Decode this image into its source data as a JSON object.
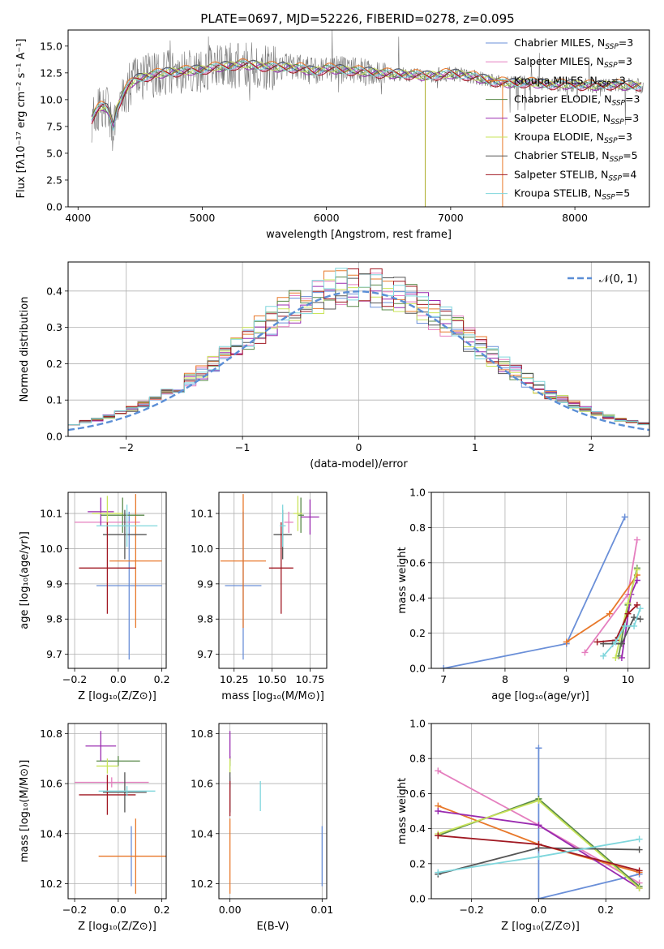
{
  "figure": {
    "title": "PLATE=0697, MJD=52226, FIBERID=0278, z=0.095"
  },
  "colors": {
    "chabrier_miles": "#6a8fd8",
    "salpeter_miles": "#e57fbf",
    "kroupa_miles": "#e8782a",
    "chabrier_elodie": "#5a8a4a",
    "salpeter_elodie": "#9a2bb0",
    "kroupa_elodie": "#c9e45a",
    "chabrier_stelib": "#555555",
    "salpeter_stelib": "#a01822",
    "kroupa_stelib": "#7fd6dc",
    "grid": "#b0b0b0",
    "gauss": "#5b8ed6"
  },
  "chart_data": [
    {
      "id": "spectrum",
      "type": "line",
      "xlabel": "wavelength [Angstrom, rest frame]",
      "ylabel": "Flux [fλ10⁻¹⁷ erg cm⁻² s⁻¹ A⁻¹]",
      "xlim": [
        3920,
        8600
      ],
      "ylim": [
        0,
        16.5
      ],
      "xticks": [
        "4000",
        "5000",
        "6000",
        "7000",
        "8000"
      ],
      "yticks": [
        "0.0",
        "2.5",
        "5.0",
        "7.5",
        "10.0",
        "12.5",
        "15.0"
      ],
      "data_x": [
        4110,
        4150,
        4200,
        4250,
        4280,
        4300,
        4350,
        4400,
        4450,
        4500,
        4600,
        4700,
        4800,
        4900,
        5000,
        5100,
        5200,
        5300,
        5400,
        5500,
        5600,
        5700,
        5800,
        5900,
        6000,
        6100,
        6200,
        6300,
        6400,
        6500,
        6600,
        6700,
        6800,
        6900,
        7000,
        7100,
        7200,
        7300,
        7400,
        7500,
        7600,
        7700,
        7800,
        7900,
        8000,
        8100,
        8200,
        8300,
        8400,
        8550
      ],
      "data_y": [
        8.2,
        9.0,
        9.5,
        9.0,
        7.0,
        8.8,
        10.2,
        11.2,
        11.8,
        12.0,
        12.3,
        12.5,
        12.6,
        12.7,
        12.8,
        13.0,
        13.1,
        13.3,
        13.2,
        13.1,
        13.0,
        13.0,
        12.9,
        12.6,
        12.9,
        12.8,
        12.7,
        12.6,
        12.5,
        12.4,
        12.4,
        12.3,
        12.2,
        12.3,
        12.4,
        12.3,
        12.1,
        11.8,
        11.6,
        11.5,
        11.6,
        11.5,
        11.4,
        11.4,
        11.4,
        11.3,
        11.3,
        11.4,
        11.3,
        11.3
      ],
      "legend": [
        "Chabrier MILES, N_SSP=3",
        "Salpeter MILES, N_SSP=3",
        "Kroupa MILES, N_SSP=3",
        "Chabrier ELODIE, N_SSP=3",
        "Salpeter ELODIE, N_SSP=3",
        "Kroupa ELODIE, N_SSP=3",
        "Chabrier STELIB, N_SSP=5",
        "Salpeter STELIB, N_SSP=4",
        "Kroupa STELIB, N_SSP=5"
      ],
      "legend_placement": "top-right",
      "grid": false
    },
    {
      "id": "residuals",
      "type": "histogram",
      "xlabel": "(data-model)/error",
      "ylabel": "Normed distribution",
      "xlim": [
        -2.5,
        2.5
      ],
      "ylim": [
        0,
        0.48
      ],
      "xticks": [
        "−2",
        "−1",
        "0",
        "1",
        "2"
      ],
      "yticks": [
        "0.0",
        "0.1",
        "0.2",
        "0.3",
        "0.4"
      ],
      "bins": [
        -2.5,
        -2.4,
        -2.3,
        -2.2,
        -2.1,
        -2.0,
        -1.9,
        -1.8,
        -1.7,
        -1.6,
        -1.5,
        -1.4,
        -1.3,
        -1.2,
        -1.1,
        -1.0,
        -0.9,
        -0.8,
        -0.7,
        -0.6,
        -0.5,
        -0.4,
        -0.3,
        -0.2,
        -0.1,
        0.0,
        0.1,
        0.2,
        0.3,
        0.4,
        0.5,
        0.6,
        0.7,
        0.8,
        0.9,
        1.0,
        1.1,
        1.2,
        1.3,
        1.4,
        1.5,
        1.6,
        1.7,
        1.8,
        1.9,
        2.0,
        2.1,
        2.2,
        2.3,
        2.4,
        2.5
      ],
      "gaussian_label": "𝒩(0, 1)",
      "legend_placement": "top-right",
      "grid": true
    },
    {
      "id": "age_vs_Z",
      "type": "scatter",
      "xlabel": "Z [log₁₀(Z/Z⊙)]",
      "ylabel": "age  [log₁₀(age/yr)]",
      "xlim": [
        -0.23,
        0.22
      ],
      "ylim": [
        9.66,
        10.16
      ],
      "xticks": [
        "−0.2",
        "0.0",
        "0.2"
      ],
      "yticks": [
        "9.7",
        "9.8",
        "9.9",
        "10.0",
        "10.1"
      ],
      "points": [
        {
          "x": 0.05,
          "y": 9.895,
          "xerr": 0.15,
          "yerr": 0.21
        },
        {
          "x": -0.05,
          "y": 10.075,
          "xerr": 0.15,
          "yerr": 0.03
        },
        {
          "x": 0.08,
          "y": 9.965,
          "xerr": 0.12,
          "yerr": 0.19
        },
        {
          "x": 0.02,
          "y": 10.095,
          "xerr": 0.1,
          "yerr": 0.05
        },
        {
          "x": -0.08,
          "y": 10.105,
          "xerr": 0.06,
          "yerr": 0.04
        },
        {
          "x": -0.05,
          "y": 10.1,
          "xerr": 0.07,
          "yerr": 0.05
        },
        {
          "x": 0.03,
          "y": 10.04,
          "xerr": 0.1,
          "yerr": 0.07
        },
        {
          "x": -0.05,
          "y": 9.945,
          "xerr": 0.13,
          "yerr": 0.13
        },
        {
          "x": 0.04,
          "y": 10.065,
          "xerr": 0.14,
          "yerr": 0.06
        }
      ],
      "grid": true
    },
    {
      "id": "age_vs_mass",
      "type": "scatter",
      "xlabel": "mass [log₁₀(M/M⊙)]",
      "ylabel": "",
      "xlim": [
        10.15,
        10.86
      ],
      "ylim": [
        9.66,
        10.16
      ],
      "xticks": [
        "10.25",
        "10.50",
        "10.75"
      ],
      "yticks": [
        "9.7",
        "9.8",
        "9.9",
        "10.0",
        "10.1"
      ],
      "points": [
        {
          "x": 10.31,
          "y": 9.895,
          "xerr": 0.12,
          "yerr": 0.21
        },
        {
          "x": 10.61,
          "y": 10.075,
          "xerr": 0.03,
          "yerr": 0.03
        },
        {
          "x": 10.31,
          "y": 9.965,
          "xerr": 0.15,
          "yerr": 0.19
        },
        {
          "x": 10.69,
          "y": 10.095,
          "xerr": 0.02,
          "yerr": 0.05
        },
        {
          "x": 10.75,
          "y": 10.09,
          "xerr": 0.06,
          "yerr": 0.05
        },
        {
          "x": 10.67,
          "y": 10.1,
          "xerr": 0.03,
          "yerr": 0.05
        },
        {
          "x": 10.57,
          "y": 10.04,
          "xerr": 0.06,
          "yerr": 0.07
        },
        {
          "x": 10.56,
          "y": 9.945,
          "xerr": 0.08,
          "yerr": 0.13
        },
        {
          "x": 10.57,
          "y": 10.065,
          "xerr": 0.02,
          "yerr": 0.06
        }
      ],
      "grid": true
    },
    {
      "id": "weight_vs_age",
      "type": "line",
      "xlabel": "age  [log₁₀(age/yr)]",
      "ylabel": "mass weight",
      "xlim": [
        6.8,
        10.35
      ],
      "ylim": [
        0,
        1
      ],
      "xticks": [
        "7",
        "8",
        "9",
        "10"
      ],
      "yticks": [
        "0.0",
        "0.2",
        "0.4",
        "0.6",
        "0.8",
        "1.0"
      ],
      "series": [
        {
          "x": [
            7.0,
            9.0,
            9.95
          ],
          "y": [
            0.0,
            0.14,
            0.86
          ]
        },
        {
          "x": [
            9.3,
            10.0,
            10.15
          ],
          "y": [
            0.09,
            0.42,
            0.73
          ]
        },
        {
          "x": [
            9.0,
            9.7,
            10.15
          ],
          "y": [
            0.15,
            0.31,
            0.53
          ]
        },
        {
          "x": [
            9.85,
            10.0,
            10.15
          ],
          "y": [
            0.07,
            0.36,
            0.57
          ]
        },
        {
          "x": [
            9.9,
            10.05,
            10.15
          ],
          "y": [
            0.06,
            0.42,
            0.5
          ]
        },
        {
          "x": [
            9.8,
            10.0,
            10.15
          ],
          "y": [
            0.06,
            0.37,
            0.56
          ]
        },
        {
          "x": [
            9.6,
            9.75,
            9.9,
            10.1,
            10.2
          ],
          "y": [
            0.14,
            0.14,
            0.14,
            0.29,
            0.28
          ]
        },
        {
          "x": [
            9.5,
            9.8,
            10.0,
            10.15
          ],
          "y": [
            0.15,
            0.16,
            0.31,
            0.36
          ]
        },
        {
          "x": [
            9.6,
            9.8,
            9.95,
            10.1,
            10.2
          ],
          "y": [
            0.07,
            0.15,
            0.24,
            0.24,
            0.34
          ]
        }
      ],
      "grid": true
    },
    {
      "id": "mass_vs_Z",
      "type": "scatter",
      "xlabel": "Z [log₁₀(Z/Z⊙)]",
      "ylabel": "mass [log₁₀(M/M⊙)]",
      "xlim": [
        -0.23,
        0.22
      ],
      "ylim": [
        10.14,
        10.84
      ],
      "xticks": [
        "−0.2",
        "0.0",
        "0.2"
      ],
      "yticks": [
        "10.2",
        "10.4",
        "10.6",
        "10.8"
      ],
      "points": [
        {
          "x": 0.06,
          "y": 10.31,
          "xerr": 0.0,
          "yerr": 0.12
        },
        {
          "x": -0.03,
          "y": 10.605,
          "xerr": 0.17,
          "yerr": 0.02
        },
        {
          "x": 0.08,
          "y": 10.31,
          "xerr": 0.17,
          "yerr": 0.15
        },
        {
          "x": 0.0,
          "y": 10.69,
          "xerr": 0.1,
          "yerr": 0.02
        },
        {
          "x": -0.08,
          "y": 10.75,
          "xerr": 0.07,
          "yerr": 0.06
        },
        {
          "x": -0.05,
          "y": 10.67,
          "xerr": 0.05,
          "yerr": 0.03
        },
        {
          "x": 0.03,
          "y": 10.565,
          "xerr": 0.1,
          "yerr": 0.08
        },
        {
          "x": -0.05,
          "y": 10.555,
          "xerr": 0.13,
          "yerr": 0.08
        },
        {
          "x": 0.04,
          "y": 10.57,
          "xerr": 0.13,
          "yerr": 0.02
        }
      ],
      "grid": true
    },
    {
      "id": "mass_vs_EBV",
      "type": "scatter",
      "xlabel": "E(B-V)",
      "ylabel": "",
      "xlim": [
        -0.0012,
        0.0105
      ],
      "ylim": [
        10.14,
        10.84
      ],
      "xticks": [
        "0.00",
        "0.01"
      ],
      "yticks": [
        "10.2",
        "10.4",
        "10.6",
        "10.8"
      ],
      "points": [
        {
          "x": 0.01,
          "y": 10.31,
          "yerr": 0.12
        },
        {
          "x": 0.0,
          "y": 10.605,
          "yerr": 0.02
        },
        {
          "x": 0.0,
          "y": 10.31,
          "yerr": 0.15
        },
        {
          "x": 0.0,
          "y": 10.69,
          "yerr": 0.02
        },
        {
          "x": 0.0,
          "y": 10.75,
          "yerr": 0.06
        },
        {
          "x": 0.0,
          "y": 10.67,
          "yerr": 0.03
        },
        {
          "x": 0.0,
          "y": 10.565,
          "yerr": 0.08
        },
        {
          "x": 0.0,
          "y": 10.54,
          "yerr": 0.07
        },
        {
          "x": 0.0033,
          "y": 10.55,
          "yerr": 0.06
        }
      ],
      "grid": true
    },
    {
      "id": "weight_vs_Z",
      "type": "line",
      "xlabel": "Z [log₁₀(Z/Z⊙)]",
      "ylabel": "mass weight",
      "xlim": [
        -0.32,
        0.33
      ],
      "ylim": [
        0,
        1
      ],
      "xticks": [
        "−0.2",
        "0.0",
        "0.2"
      ],
      "yticks": [
        "0.0",
        "0.2",
        "0.4",
        "0.6",
        "0.8",
        "1.0"
      ],
      "series": [
        {
          "x": [
            0.0,
            0.0,
            0.3
          ],
          "y": [
            0.86,
            0.0,
            0.14
          ]
        },
        {
          "x": [
            -0.3,
            0.0,
            0.3
          ],
          "y": [
            0.73,
            0.42,
            0.09
          ]
        },
        {
          "x": [
            -0.3,
            0.0,
            0.3
          ],
          "y": [
            0.53,
            0.31,
            0.15
          ]
        },
        {
          "x": [
            -0.3,
            0.0,
            0.3
          ],
          "y": [
            0.36,
            0.57,
            0.07
          ]
        },
        {
          "x": [
            -0.3,
            0.0,
            0.3
          ],
          "y": [
            0.5,
            0.42,
            0.06
          ]
        },
        {
          "x": [
            -0.3,
            0.0,
            0.3
          ],
          "y": [
            0.37,
            0.56,
            0.06
          ]
        },
        {
          "x": [
            -0.3,
            0.0,
            0.3
          ],
          "y": [
            0.14,
            0.29,
            0.28
          ]
        },
        {
          "x": [
            -0.3,
            0.0,
            0.3
          ],
          "y": [
            0.36,
            0.31,
            0.16
          ]
        },
        {
          "x": [
            -0.3,
            0.0,
            0.3
          ],
          "y": [
            0.15,
            0.24,
            0.34
          ]
        }
      ],
      "grid": true
    }
  ]
}
